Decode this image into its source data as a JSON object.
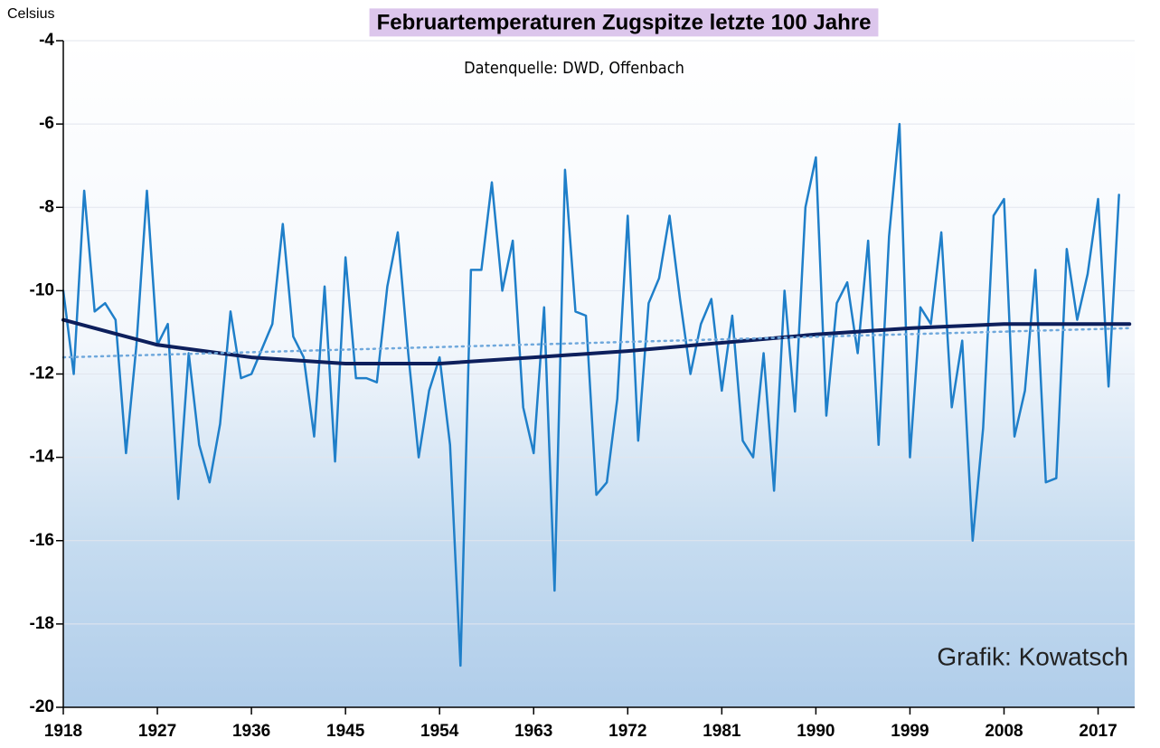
{
  "chart_data": {
    "type": "line",
    "title": "Februartemperaturen Zugspitze letzte 100 Jahre",
    "subtitle": "Datenquelle: DWD, Offenbach",
    "y_label": "Celsius",
    "annotation": "Grafik: Kowatsch",
    "x": [
      1918,
      1919,
      1920,
      1921,
      1922,
      1923,
      1924,
      1925,
      1926,
      1927,
      1928,
      1929,
      1930,
      1931,
      1932,
      1933,
      1934,
      1935,
      1936,
      1937,
      1938,
      1939,
      1940,
      1941,
      1942,
      1943,
      1944,
      1945,
      1946,
      1947,
      1948,
      1949,
      1950,
      1951,
      1952,
      1953,
      1954,
      1955,
      1956,
      1957,
      1958,
      1959,
      1960,
      1961,
      1962,
      1963,
      1964,
      1965,
      1966,
      1967,
      1968,
      1969,
      1970,
      1971,
      1972,
      1973,
      1974,
      1975,
      1976,
      1977,
      1978,
      1979,
      1980,
      1981,
      1982,
      1983,
      1984,
      1985,
      1986,
      1987,
      1988,
      1989,
      1990,
      1991,
      1992,
      1993,
      1994,
      1995,
      1996,
      1997,
      1998,
      1999,
      2000,
      2001,
      2002,
      2003,
      2004,
      2005,
      2006,
      2007,
      2008,
      2009,
      2010,
      2011,
      2012,
      2013,
      2014,
      2015,
      2016,
      2017,
      2018,
      2019
    ],
    "series": [
      {
        "color": "#1f7fc9",
        "values": [
          -10.0,
          -12.0,
          -7.6,
          -10.5,
          -10.3,
          -10.7,
          -13.9,
          -11.3,
          -7.6,
          -11.3,
          -10.8,
          -15.0,
          -11.5,
          -13.7,
          -14.6,
          -13.2,
          -10.5,
          -12.1,
          -12.0,
          -11.4,
          -10.8,
          -8.4,
          -11.1,
          -11.6,
          -13.5,
          -9.9,
          -14.1,
          -9.2,
          -12.1,
          -12.1,
          -12.2,
          -9.9,
          -8.6,
          -11.5,
          -14.0,
          -12.4,
          -11.6,
          -13.7,
          -19.0,
          -9.5,
          -9.5,
          -7.4,
          -10.0,
          -8.8,
          -12.8,
          -13.9,
          -10.4,
          -17.2,
          -7.1,
          -10.5,
          -10.6,
          -14.9,
          -14.6,
          -12.6,
          -8.2,
          -13.6,
          -10.3,
          -9.7,
          -8.2,
          -10.2,
          -12.0,
          -10.8,
          -10.2,
          -12.4,
          -10.6,
          -13.6,
          -14.0,
          -11.5,
          -14.8,
          -10.0,
          -12.9,
          -8.0,
          -6.8,
          -13.0,
          -10.3,
          -9.8,
          -11.5,
          -8.8,
          -13.7,
          -8.7,
          -6.0,
          -14.0,
          -10.4,
          -10.8,
          -8.6,
          -12.8,
          -11.2,
          -16.0,
          -13.3,
          -8.2,
          -7.8,
          -13.5,
          -12.4,
          -9.5,
          -14.6,
          -14.5,
          -9.0,
          -10.7,
          -9.6,
          -7.8,
          -12.3,
          -7.7
        ]
      },
      {
        "color": "#0d1f5c",
        "x": [
          1918,
          1927,
          1936,
          1945,
          1954,
          1963,
          1972,
          1981,
          1990,
          1999,
          2008,
          2017,
          2020
        ],
        "values": [
          -10.7,
          -11.3,
          -11.6,
          -11.75,
          -11.75,
          -11.6,
          -11.45,
          -11.25,
          -11.05,
          -10.9,
          -10.8,
          -10.8,
          -10.8
        ]
      },
      {
        "color": "#6fa8dc",
        "dashed": true,
        "x": [
          1918,
          2020
        ],
        "values": [
          -11.6,
          -10.9
        ]
      }
    ],
    "xlim": [
      1918,
      2020.5
    ],
    "xticks": [
      1918,
      1927,
      1936,
      1945,
      1954,
      1963,
      1972,
      1981,
      1990,
      1999,
      2008,
      2017
    ],
    "ylim": [
      -20,
      -4
    ],
    "yticks": [
      -20,
      -18,
      -16,
      -14,
      -12,
      -10,
      -8,
      -6,
      -4
    ],
    "grid": true
  }
}
